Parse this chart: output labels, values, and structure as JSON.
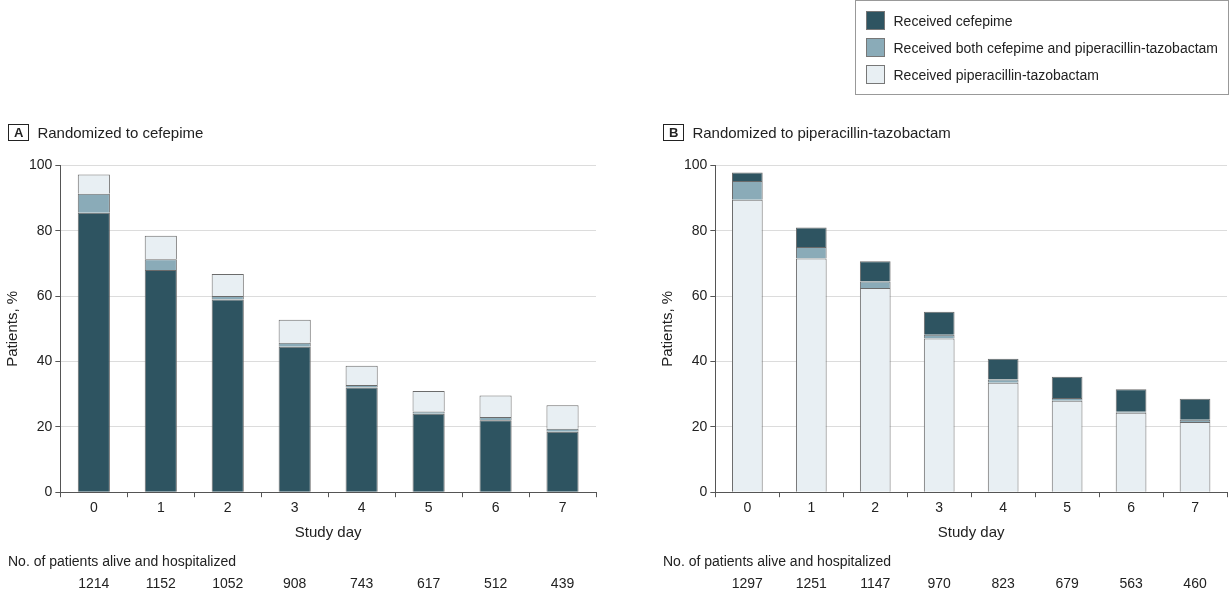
{
  "chart_data": [
    {
      "type": "bar",
      "title": "Randomized to cefepime",
      "xlabel": "Study day",
      "ylabel": "Patients, %",
      "categories": [
        "0",
        "1",
        "2",
        "3",
        "4",
        "5",
        "6",
        "7"
      ],
      "stacked": true,
      "ylim": [
        0,
        100
      ],
      "yticks": [
        0,
        20,
        40,
        60,
        80,
        100
      ],
      "grid": "y",
      "legend": false,
      "series": [
        {
          "color": "#2e5461",
          "values": [
            85.5,
            68,
            59,
            44.5,
            32,
            24,
            22,
            18.5
          ]
        },
        {
          "color": "#8aabb8",
          "values": [
            5.8,
            3.3,
            1,
            1.2,
            0.8,
            0.7,
            1,
            0.9
          ]
        },
        {
          "color": "#e8eff3",
          "values": [
            5.9,
            7.2,
            6.8,
            7.1,
            5.9,
            6.3,
            6.6,
            7.2
          ]
        }
      ],
      "annotations": [
        "A",
        "No. of patients alive and hospitalized",
        "1214",
        "1152",
        "1052",
        "908",
        "743",
        "617",
        "512",
        "439"
      ]
    },
    {
      "type": "bar",
      "title": "Randomized to piperacillin-tazobactam",
      "xlabel": "Study day",
      "ylabel": "Patients, %",
      "categories": [
        "0",
        "1",
        "2",
        "3",
        "4",
        "5",
        "6",
        "7"
      ],
      "stacked": true,
      "ylim": [
        0,
        100
      ],
      "yticks": [
        0,
        20,
        40,
        60,
        80,
        100
      ],
      "grid": "y",
      "legend": "top right",
      "series": [
        {
          "name": "Received piperacillin-tazobactam",
          "color": "#e8eff3",
          "values": [
            89.5,
            71.5,
            62.5,
            47,
            33.5,
            28,
            24.3,
            21.5
          ]
        },
        {
          "name": "Received both cefepime and piperacillin-tazobactam",
          "color": "#8aabb8",
          "values": [
            5.7,
            3.5,
            2,
            1.2,
            1,
            0.8,
            0.3,
            0.7
          ]
        },
        {
          "name": "Received cefepime",
          "color": "#2e5461",
          "values": [
            2.6,
            6,
            6.2,
            7,
            6.3,
            6.5,
            6.9,
            6.4
          ]
        }
      ],
      "annotations": [
        "B",
        "No. of patients alive and hospitalized",
        "1297",
        "1251",
        "1147",
        "970",
        "823",
        "679",
        "563",
        "460"
      ]
    }
  ]
}
